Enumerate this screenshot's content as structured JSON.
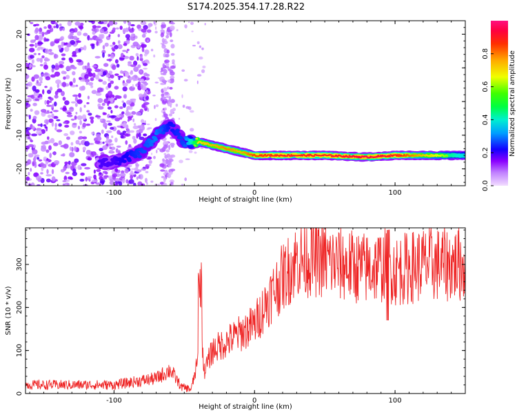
{
  "title": "S174.2025.354.17.28.R22",
  "chart_data": [
    {
      "type": "heatmap",
      "name": "spectrogram",
      "xlabel": "Height of straight line (km)",
      "ylabel": "Frequency (Hz)",
      "xlim": [
        -163,
        150
      ],
      "ylim": [
        -25,
        24
      ],
      "xticks": [
        -100,
        0,
        100
      ],
      "yticks": [
        20,
        10,
        0,
        -10,
        -20
      ],
      "colorbar": {
        "label": "Normalized spectral amplitude",
        "range": [
          0,
          1
        ],
        "ticks": [
          "0.0",
          "0.2",
          "0.4",
          "0.6",
          "0.8"
        ],
        "tick_values": [
          0,
          0.2,
          0.4,
          0.6,
          0.8
        ]
      },
      "ridge": {
        "description_points_x": [
          -100,
          -80,
          -70,
          -60,
          -50,
          -40,
          -30,
          -20,
          -10,
          0,
          20,
          50,
          80,
          100,
          150
        ],
        "frequency_hz": [
          -18,
          -15,
          -10,
          -7,
          -12,
          -12,
          -13,
          -14,
          -15,
          -16,
          -16,
          -16,
          -16.5,
          -16,
          -16
        ],
        "peak_amplitude": [
          0.25,
          0.35,
          0.4,
          0.3,
          0.35,
          0.7,
          0.75,
          0.8,
          0.75,
          0.85,
          0.9,
          0.9,
          0.95,
          0.9,
          0.5
        ]
      }
    },
    {
      "type": "line",
      "name": "snr",
      "xlabel": "Height of straight line (km)",
      "ylabel": "SNR (10 * v/v)",
      "xlim": [
        -163,
        150
      ],
      "ylim": [
        0,
        385
      ],
      "xticks": [
        -100,
        0,
        100
      ],
      "yticks": [
        0,
        100,
        200,
        300
      ],
      "color": "#ee2222",
      "envelope": {
        "x": [
          -163,
          -100,
          -70,
          -60,
          -52,
          -45,
          -40,
          -38,
          -36,
          -30,
          -20,
          -10,
          0,
          10,
          20,
          30,
          40,
          50,
          60,
          80,
          95,
          100,
          120,
          150
        ],
        "y": [
          20,
          20,
          35,
          55,
          15,
          10,
          80,
          180,
          50,
          100,
          120,
          140,
          160,
          220,
          270,
          310,
          315,
          310,
          300,
          290,
          300,
          285,
          300,
          300
        ]
      }
    }
  ]
}
